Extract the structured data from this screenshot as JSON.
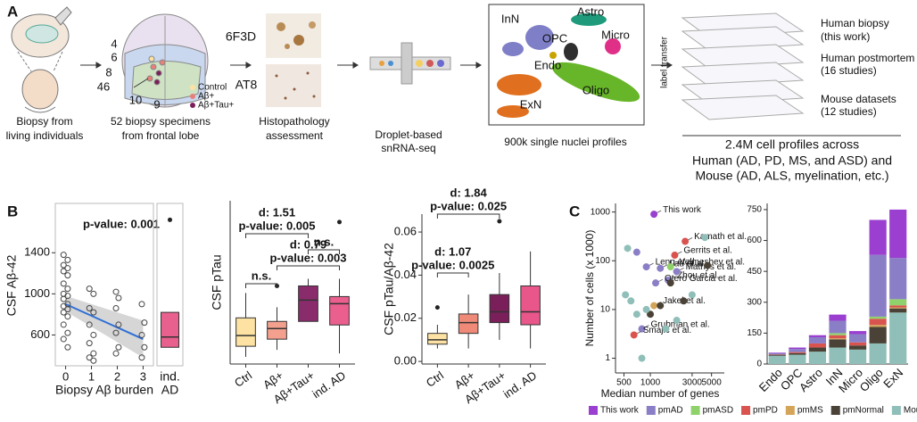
{
  "panel_labels": [
    "A",
    "B",
    "C"
  ],
  "panel_a": {
    "biopsy": [
      "Biopsy from",
      "living individuals"
    ],
    "specimens": [
      "52 biopsy specimens",
      "from frontal lobe"
    ],
    "brain_areas": [
      "4",
      "6",
      "8",
      "46",
      "10",
      "9"
    ],
    "groups": [
      "Control",
      "Aβ+",
      "Aβ+Tau+"
    ],
    "stains": [
      "6F3D",
      "AT8"
    ],
    "histopathology": [
      "Histopathology",
      "assessment"
    ],
    "sequencing": [
      "Droplet-based",
      "snRNA-seq"
    ],
    "clusters": [
      "InN",
      "Astro",
      "OPC",
      "Micro",
      "Endo",
      "Oligo",
      "ExN"
    ],
    "profiles": "900k single nuclei profiles",
    "label_transfer": "label transfer",
    "layers": [
      [
        "Human biopsy",
        "(this work)"
      ],
      [
        "Human postmortem",
        "(16 studies)"
      ],
      [
        "Mouse datasets",
        "(12 studies)"
      ]
    ],
    "summary": [
      "2.4M cell profiles across",
      "Human (AD, PD, MS, and ASD) and",
      "Mouse (AD, ALS, myelination, etc.)"
    ]
  },
  "chart_data": [
    {
      "type": "scatter",
      "xlabel": "Biopsy Aβ burden",
      "ylabel": "CSF Aβ-42",
      "annotation": "p-value: 0.001",
      "x": [
        -0.08,
        0.08,
        -0.08,
        0.08,
        -0.08,
        0.08,
        -0.08,
        0.08,
        -0.08,
        0.08,
        -0.08,
        0.08,
        -0.08,
        0.08,
        -0.08,
        0.08,
        -0.08,
        0.08,
        -0.08,
        0.08,
        0.92,
        1.08,
        0.92,
        1.08,
        0.92,
        1.08,
        0.92,
        1.08,
        0.92,
        1.08,
        1.95,
        2.05,
        1.95,
        2.05,
        1.95,
        2.05,
        1.95,
        2.95,
        3.05,
        2.95,
        3.05,
        2.95
      ],
      "y": [
        1380,
        1330,
        1280,
        1250,
        1220,
        1180,
        1100,
        1050,
        1000,
        980,
        950,
        900,
        880,
        850,
        820,
        780,
        700,
        620,
        560,
        480,
        1050,
        1000,
        860,
        820,
        700,
        600,
        520,
        420,
        380,
        350,
        1020,
        960,
        860,
        700,
        620,
        480,
        420,
        900,
        720,
        600,
        480,
        380
      ],
      "xlim": [
        -0.4,
        3.4
      ],
      "xticks": [
        0,
        1,
        2,
        3
      ],
      "ylim": [
        300,
        1880
      ],
      "yticks": [
        600,
        1000,
        1400
      ],
      "fit": {
        "x": [
          0,
          3
        ],
        "y": [
          900,
          560
        ],
        "ci_lower": [
          830,
          380
        ],
        "ci_upper": [
          980,
          740
        ]
      },
      "side_box": {
        "category": [
          "ind.",
          "AD"
        ],
        "color": "#e8608e",
        "q1": 480,
        "median": 580,
        "q3": 820,
        "whisker_low": 480,
        "whisker_high": 820,
        "outliers": [
          1720
        ]
      }
    },
    {
      "type": "box",
      "ylabel": "CSF pTau",
      "categories": [
        "Ctrl",
        "Aβ+",
        "Aβ+Tau+",
        "ind. AD"
      ],
      "colors": [
        "#fde2a3",
        "#f4a08e",
        "#8a2b6c",
        "#ea5f8d"
      ],
      "q1": [
        5,
        7,
        12,
        11
      ],
      "median": [
        8,
        10,
        18,
        17
      ],
      "q3": [
        13,
        12,
        22,
        19
      ],
      "whisker_low": [
        2,
        4,
        12,
        3
      ],
      "whisker_high": [
        20,
        16,
        24,
        24
      ],
      "outliers": [
        [],
        [
          22
        ],
        [],
        [
          40
        ]
      ],
      "ylim": [
        0,
        46
      ],
      "annotations": [
        {
          "labels": [
            "d: 1.51",
            "p-value: 0.005"
          ],
          "between": [
            0,
            2
          ]
        },
        {
          "labels": [
            "n.s."
          ],
          "between": [
            2,
            3
          ]
        },
        {
          "labels": [
            "d: 0.79",
            "p-value: 0.003"
          ],
          "between": [
            1,
            3
          ]
        },
        {
          "labels": [
            "n.s."
          ],
          "between": [
            0,
            1
          ]
        }
      ]
    },
    {
      "type": "box",
      "ylabel": "CSF pTau/Aβ-42",
      "categories": [
        "Ctrl",
        "Aβ+",
        "Aβ+Tau+",
        "ind. AD"
      ],
      "colors": [
        "#fde2a3",
        "#f08a78",
        "#7b1f5b",
        "#e8568a"
      ],
      "q1": [
        0.008,
        0.013,
        0.018,
        0.017
      ],
      "median": [
        0.01,
        0.018,
        0.023,
        0.023
      ],
      "q3": [
        0.013,
        0.022,
        0.031,
        0.035
      ],
      "whisker_low": [
        0.006,
        0.006,
        0.01,
        0.006
      ],
      "whisker_high": [
        0.017,
        0.031,
        0.041,
        0.051
      ],
      "outliers": [
        [
          0.025
        ],
        [],
        [
          0.065
        ],
        []
      ],
      "ylim": [
        -0.0012,
        0.0683
      ],
      "yticks": [
        {
          "value": 0,
          "label": "0.00"
        },
        {
          "value": 0.02,
          "label": "0.02"
        },
        {
          "value": 0.04,
          "label": "0.04"
        },
        {
          "value": 0.06,
          "label": "0.06"
        }
      ],
      "annotations": [
        {
          "labels": [
            "d: 1.84",
            "p-value: 0.025"
          ],
          "between": [
            0,
            2
          ]
        },
        {
          "labels": [
            "d: 1.07",
            "p-value: 0.0025"
          ],
          "between": [
            0,
            1
          ]
        }
      ]
    },
    {
      "type": "scatter",
      "log_x": true,
      "log_y": true,
      "xlabel": "Median number of genes",
      "ylabel": "Number of cells (x 1000)",
      "xlim": [
        400,
        7000
      ],
      "xticks": [
        500,
        1000,
        3000,
        5000
      ],
      "ylim": [
        0.5,
        1500
      ],
      "yticks": [
        1,
        10,
        100,
        1000
      ],
      "series": [
        {
          "x": [
            1100
          ],
          "y": [
            900
          ],
          "labels": [
            "This work"
          ]
        },
        {
          "x": [
            700,
            900,
            1300,
            1600,
            2000,
            1150,
            800
          ],
          "y": [
            150,
            75,
            70,
            40,
            60,
            35,
            4
          ],
          "labels": [
            null,
            "Leng et al.",
            "Lau et al.",
            "Zhou et al.",
            "Mathys et al.",
            "Otero Garcia et al.",
            "Grubman et al."
          ]
        },
        {
          "x": [
            1700
          ],
          "y": [
            75
          ],
          "labels": [
            "Velmeshev et al."
          ]
        },
        {
          "x": [
            2500,
            1900,
            650
          ],
          "y": [
            250,
            130,
            3
          ],
          "labels": [
            "Kamath et al.",
            "Gerrits et al.",
            "Smajic et al."
          ]
        },
        {
          "x": [
            1100
          ],
          "y": [
            12
          ],
          "labels": [
            "Jakel et al."
          ]
        },
        {
          "x": [
            1700,
            1300,
            4500,
            2400,
            1000
          ],
          "y": [
            35,
            12,
            80,
            15,
            8
          ]
        },
        {
          "x": [
            550,
            700,
            800,
            3000,
            4200,
            600,
            900,
            1500,
            2000,
            520
          ],
          "y": [
            180,
            8,
            1,
            20,
            300,
            15,
            10,
            4,
            6,
            20
          ]
        }
      ]
    },
    {
      "type": "stacked_bar",
      "categories": [
        "Endo",
        "OPC",
        "Astro",
        "InN",
        "Micro",
        "Oligo",
        "ExN"
      ],
      "ylim": [
        0,
        780
      ],
      "yticks": [
        0,
        150,
        300,
        450,
        600,
        750
      ],
      "series": [
        {
          "values": [
            3,
            7,
            10,
            30,
            15,
            170,
            235
          ]
        },
        {
          "values": [
            5,
            15,
            30,
            60,
            40,
            300,
            200
          ]
        },
        {
          "values": [
            0,
            0,
            0,
            10,
            0,
            10,
            30
          ]
        },
        {
          "values": [
            2,
            5,
            20,
            15,
            15,
            30,
            10
          ]
        },
        {
          "values": [
            0,
            0,
            0,
            5,
            0,
            10,
            5
          ]
        },
        {
          "values": [
            5,
            8,
            20,
            40,
            20,
            80,
            20
          ]
        },
        {
          "values": [
            40,
            45,
            60,
            80,
            70,
            100,
            250
          ]
        }
      ]
    }
  ],
  "legend": {
    "names": [
      "This work",
      "pmAD",
      "pmASD",
      "pmPD",
      "pmMS",
      "pmNormal",
      "Mouse"
    ],
    "colors": [
      "#9a3fcf",
      "#8a7fc6",
      "#8fd16a",
      "#d9534f",
      "#d4a559",
      "#4a4236",
      "#8fbfb8"
    ]
  }
}
